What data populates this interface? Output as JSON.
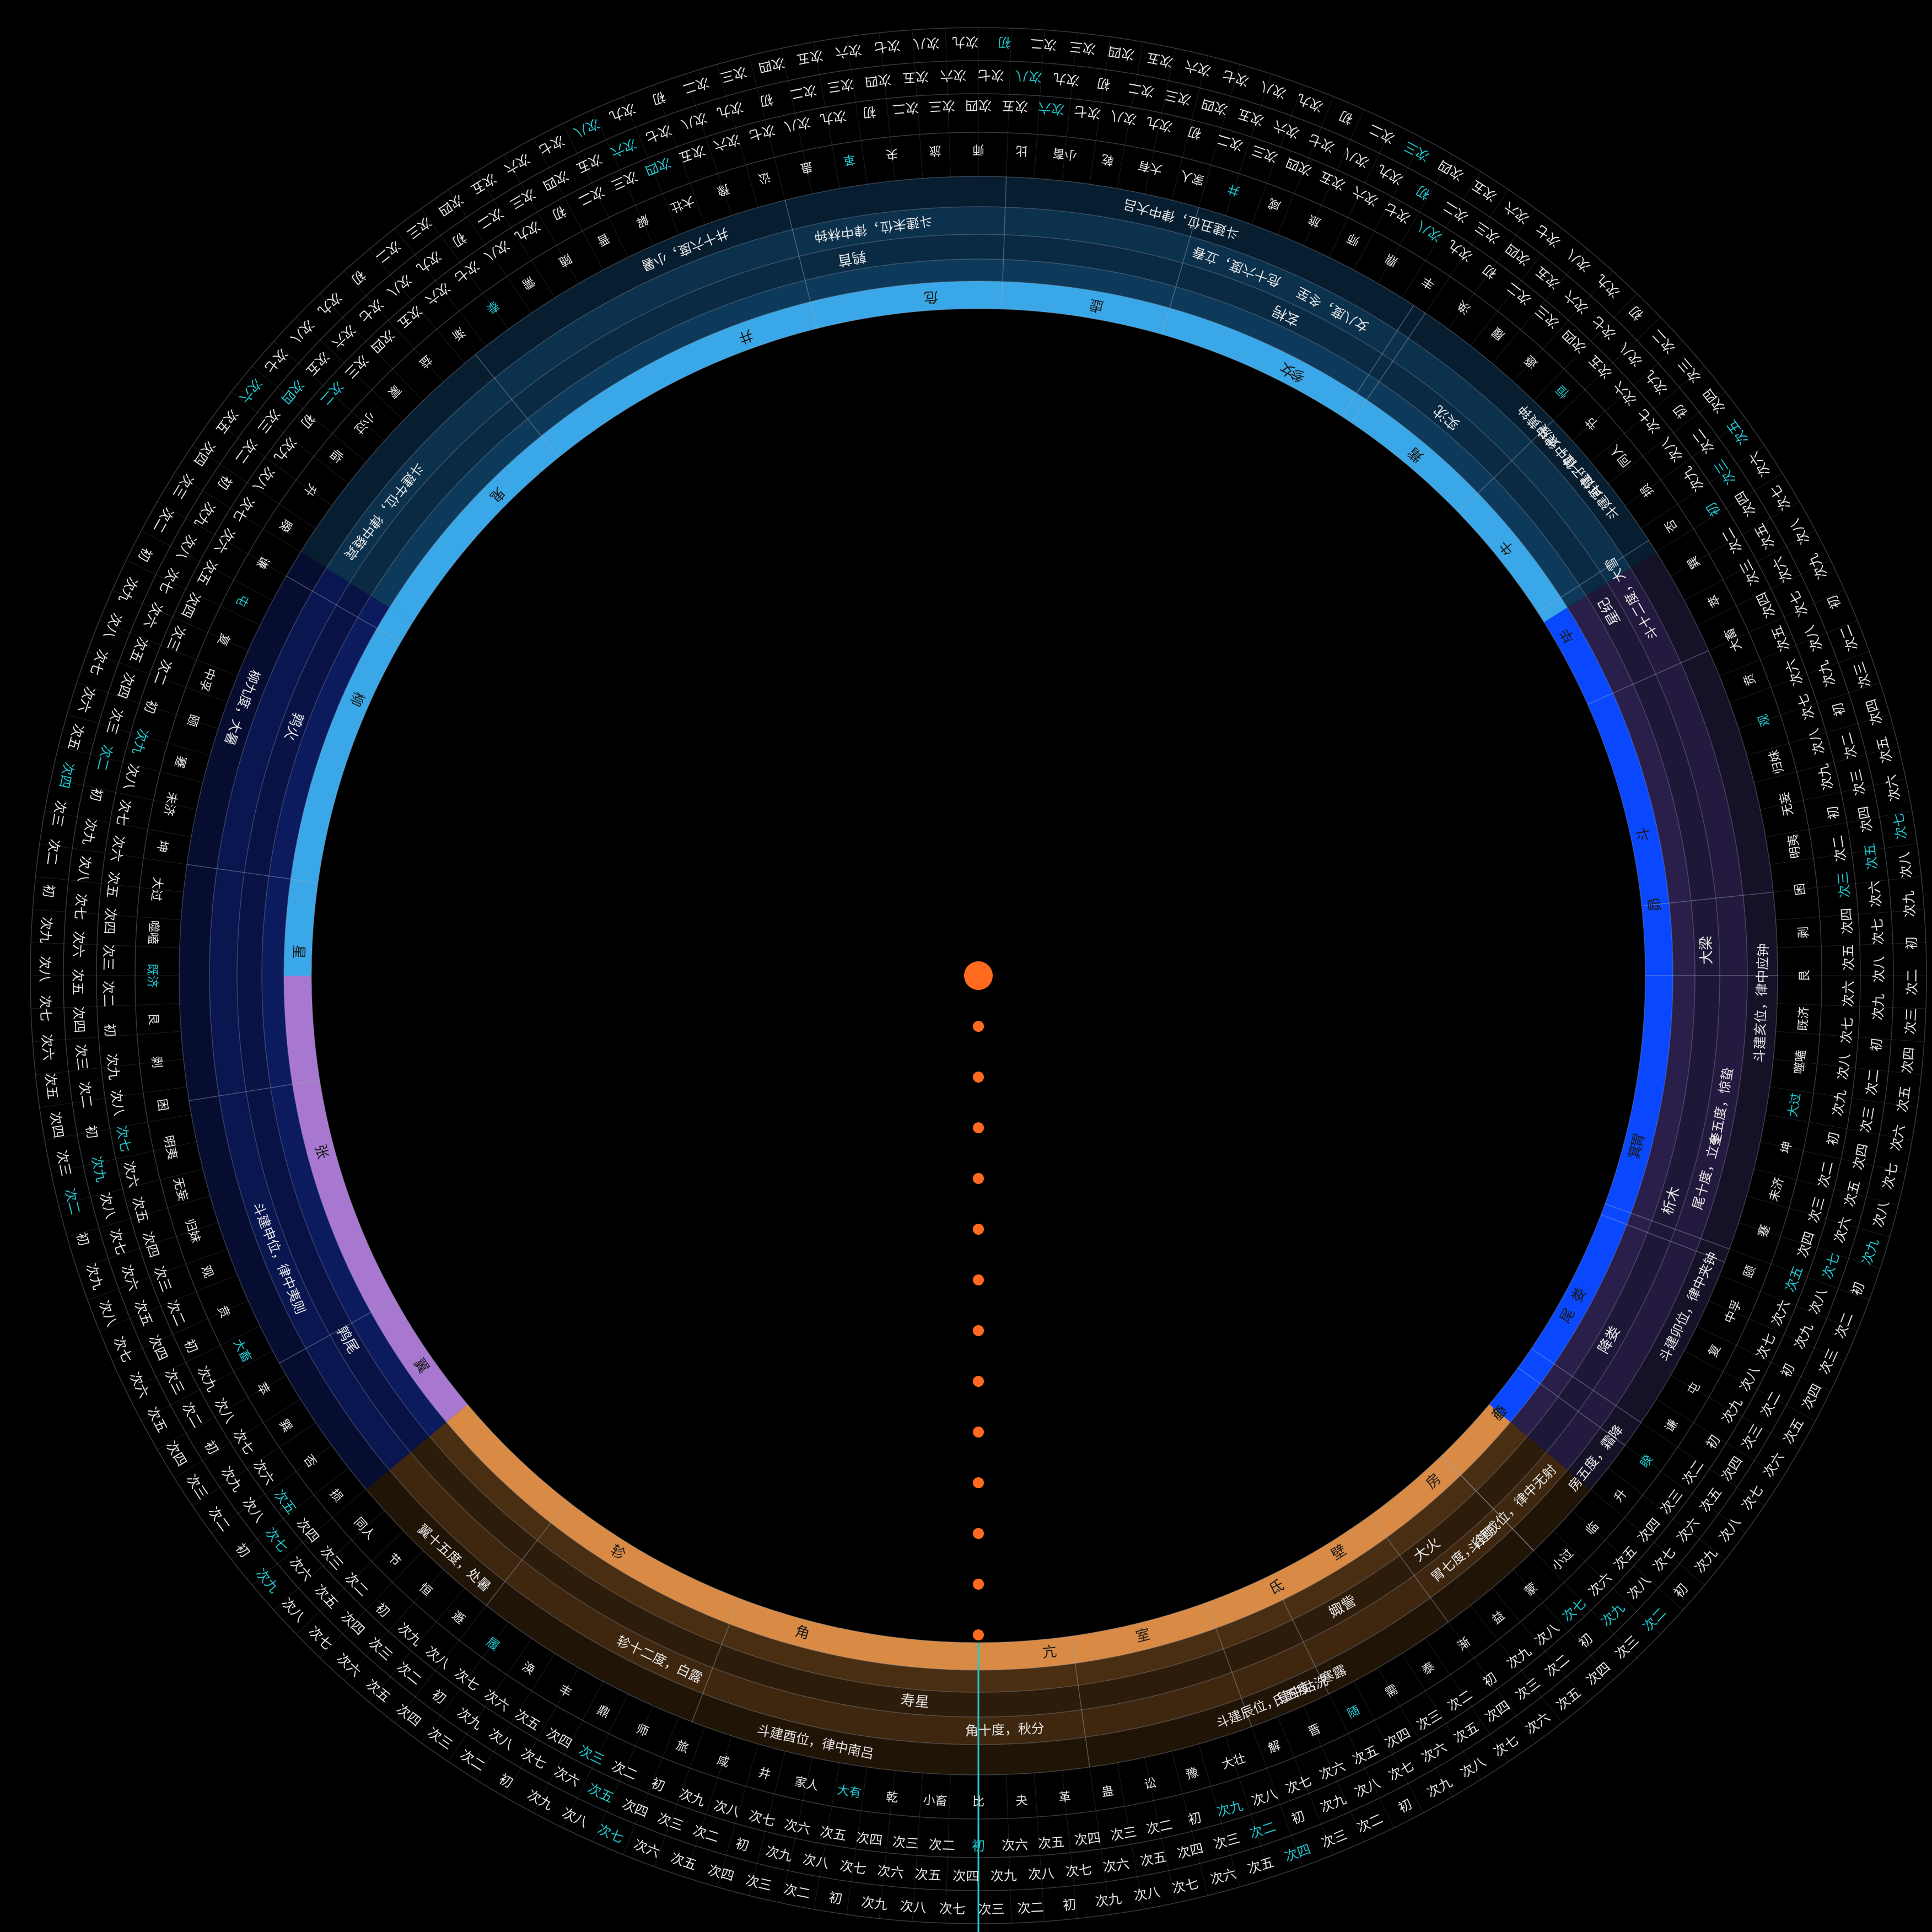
{
  "colors": {
    "background": "#000000",
    "center_dot": "#ff6a1f",
    "highlight_text": "#20c8d0",
    "normal_text": "#e6e6e6",
    "marker_line": "#20c8d0",
    "divider": "#9aa4b8"
  },
  "quadrants": [
    {
      "name": "north-blue",
      "from": -58,
      "to": 58,
      "inner": "#3aa8e8",
      "band": "#0d3a5a",
      "band2": "#0a2a44"
    },
    {
      "name": "east-blue",
      "from": 58,
      "to": 130,
      "inner": "#0a48ff",
      "band": "#2a1f4a",
      "band2": "#1e1838"
    },
    {
      "name": "south-orange",
      "from": 130,
      "to": 230,
      "inner": "#d98a44",
      "band": "#4a2e12",
      "band2": "#2e1c0a"
    },
    {
      "name": "west-purple",
      "from": 230,
      "to": 270,
      "inner": "#a878d0",
      "band": "#0c1a5e",
      "band2": "#081244"
    },
    {
      "name": "west-navy",
      "from": 270,
      "to": 302,
      "inner": "#3aa8e8",
      "band": "#0c1a5e",
      "band2": "#081244"
    }
  ],
  "mansions": [
    {
      "name": "井",
      "angle": -20
    },
    {
      "name": "鬼",
      "angle": -45
    },
    {
      "name": "柳",
      "angle": -66
    },
    {
      "name": "星",
      "angle": -88
    },
    {
      "name": "张",
      "angle": -105
    },
    {
      "name": "翼",
      "angle": -125
    },
    {
      "name": "轸",
      "angle": -148
    },
    {
      "name": "角",
      "angle": -165
    },
    {
      "name": "亢",
      "angle": -186
    },
    {
      "name": "氐",
      "angle": -206
    },
    {
      "name": "房",
      "angle": -222
    },
    {
      "name": "心",
      "angle": -230
    },
    {
      "name": "尾",
      "angle": -240
    },
    {
      "name": "箕",
      "angle": -255
    },
    {
      "name": "斗",
      "angle": -282
    },
    {
      "name": "牛",
      "angle": -309
    },
    {
      "name": "女",
      "angle": -333
    },
    {
      "name": "虚",
      "angle": -350
    },
    {
      "name": "危",
      "angle": -4
    },
    {
      "name": "参",
      "angle": 28
    },
    {
      "name": "觜",
      "angle": 40
    },
    {
      "name": "毕",
      "angle": 60
    },
    {
      "name": "昴",
      "angle": 84
    },
    {
      "name": "胃",
      "angle": 104
    },
    {
      "name": "娄",
      "angle": 118
    },
    {
      "name": "奎",
      "angle": 130
    },
    {
      "name": "壁",
      "angle": 148
    },
    {
      "name": "室",
      "angle": 166
    }
  ],
  "signs": [
    {
      "text": "鹑首",
      "angle": -10
    },
    {
      "text": "鹑火",
      "angle": -70
    },
    {
      "text": "鹑尾",
      "angle": -120
    },
    {
      "text": "寿星",
      "angle": -175
    },
    {
      "text": "大火",
      "angle": -218
    },
    {
      "text": "析木",
      "angle": -252
    },
    {
      "text": "星纪",
      "angle": -300
    },
    {
      "text": "玄枵",
      "angle": -335
    },
    {
      "text": "娵訾",
      "angle": 150
    },
    {
      "text": "降娄",
      "angle": 120
    },
    {
      "text": "大梁",
      "angle": 88
    },
    {
      "text": "实沈",
      "angle": 40
    }
  ],
  "solar_terms": [
    {
      "text": "斗建未位，律中林钟",
      "angle": -8
    },
    {
      "text": "井十六度，小暑",
      "angle": -22
    },
    {
      "text": "斗建午位，律中蕤宾",
      "angle": -52
    },
    {
      "text": "柳九度，大暑",
      "angle": -70
    },
    {
      "text": "斗建申位，律中夷则",
      "angle": -112
    },
    {
      "text": "翼十五度，处暑",
      "angle": -138
    },
    {
      "text": "轸十二度，白露",
      "angle": -155
    },
    {
      "text": "斗建酉位，律中南吕",
      "angle": -168
    },
    {
      "text": "角十度，秋分",
      "angle": -182
    },
    {
      "text": "氐五度，寒露",
      "angle": -205
    },
    {
      "text": "斗建戌位，律中无射",
      "angle": -225
    },
    {
      "text": "房五度，霜降",
      "angle": -232
    },
    {
      "text": "尾十度，立冬",
      "angle": -255
    },
    {
      "text": "斗建亥位，律中应钟",
      "angle": -268
    },
    {
      "text": "斗十二度，大雪",
      "angle": -300
    },
    {
      "text": "斗建子位，律中黄钟",
      "angle": -312
    },
    {
      "text": "女八度，冬至",
      "angle": -332
    },
    {
      "text": "斗建丑位，律中大吕",
      "angle": -345
    },
    {
      "text": "危十六度，立春",
      "angle": 20
    },
    {
      "text": "斗建寅位，律中太簇",
      "angle": 50
    },
    {
      "text": "奎五度，惊蛰",
      "angle": 100
    },
    {
      "text": "斗建卯位，律中夹钟",
      "angle": 115
    },
    {
      "text": "胃七度，谷雨",
      "angle": 140
    },
    {
      "text": "斗建辰位，律中姑洗",
      "angle": 158
    }
  ],
  "hexagram_ring": [
    "比",
    "小畜",
    "乾",
    "大有",
    "家人",
    "井",
    "咸",
    "旅",
    "师",
    "鼎",
    "丰",
    "涣",
    "履",
    "遯",
    "恒",
    "节",
    "同人",
    "损",
    "否",
    "巽",
    "萃",
    "大畜",
    "贲",
    "观",
    "归妹",
    "无妄",
    "明夷",
    "困",
    "剥",
    "艮",
    "既济",
    "噬嗑",
    "大过",
    "坤",
    "未济",
    "蹇",
    "颐",
    "中孚",
    "复",
    "屯",
    "谦",
    "睽",
    "升",
    "临",
    "小过",
    "蒙",
    "益",
    "渐",
    "泰",
    "需",
    "随",
    "晋",
    "解",
    "大壮",
    "豫",
    "讼",
    "蛊",
    "革",
    "夬",
    "旅",
    "师"
  ],
  "line_ring": [
    "初",
    "次二",
    "次三",
    "次四",
    "次五",
    "次六",
    "次七",
    "次八",
    "次九"
  ],
  "marker": {
    "angle": 0
  }
}
